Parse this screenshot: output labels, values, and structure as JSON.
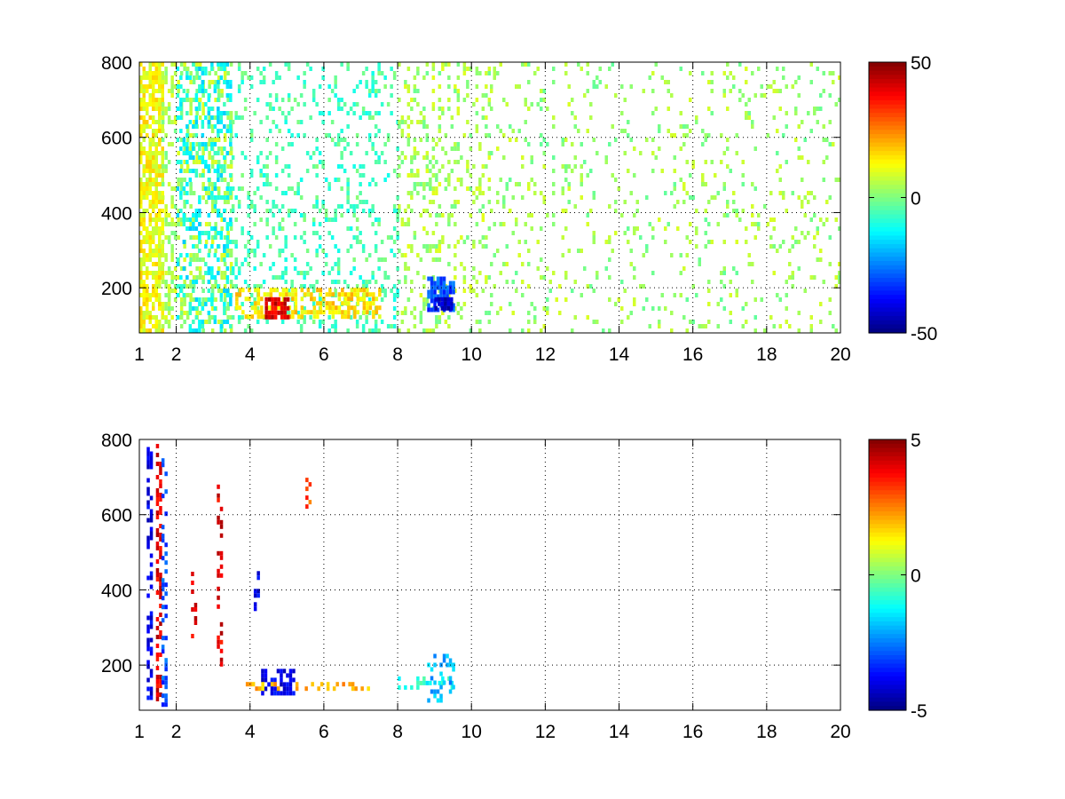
{
  "figure": {
    "background": "#ffffff"
  },
  "chart_data": [
    {
      "type": "heatmap",
      "panel": "top",
      "colormap": "jet",
      "x_range": [
        1,
        20
      ],
      "y_range": [
        80,
        800
      ],
      "x_ticks": [
        1,
        2,
        4,
        6,
        8,
        10,
        12,
        14,
        16,
        18,
        20
      ],
      "y_ticks": [
        200,
        400,
        600,
        800
      ],
      "grid": true,
      "colorbar": {
        "range": [
          -50,
          50
        ],
        "ticks": [
          50,
          0,
          -50
        ]
      },
      "features": [
        {
          "x": [
            1.0,
            1.6
          ],
          "y": [
            80,
            800
          ],
          "value": 12,
          "density": 0.7
        },
        {
          "x": [
            1.6,
            3.5
          ],
          "y": [
            80,
            800
          ],
          "value": 4,
          "density": 0.35
        },
        {
          "x": [
            2.0,
            3.5
          ],
          "y": [
            80,
            800
          ],
          "value": -12,
          "density": 0.3
        },
        {
          "x": [
            3.5,
            8.0
          ],
          "y": [
            80,
            800
          ],
          "value": -5,
          "density": 0.2
        },
        {
          "x": [
            3.6,
            7.5
          ],
          "y": [
            120,
            200
          ],
          "value": 15,
          "density": 0.55
        },
        {
          "x": [
            4.4,
            5.0
          ],
          "y": [
            125,
            175
          ],
          "value": 40,
          "density": 0.8
        },
        {
          "x": [
            8.0,
            10.5
          ],
          "y": [
            80,
            800
          ],
          "value": 4,
          "density": 0.22
        },
        {
          "x": [
            8.8,
            9.5
          ],
          "y": [
            140,
            230
          ],
          "value": -30,
          "density": 0.75
        },
        {
          "x": [
            9.0,
            9.5
          ],
          "y": [
            150,
            175
          ],
          "value": -45,
          "density": 0.9
        },
        {
          "x": [
            10.5,
            20.0
          ],
          "y": [
            80,
            800
          ],
          "value": 3,
          "density": 0.1
        }
      ]
    },
    {
      "type": "heatmap",
      "panel": "bottom",
      "colormap": "jet",
      "x_range": [
        1,
        20
      ],
      "y_range": [
        80,
        800
      ],
      "x_ticks": [
        1,
        2,
        4,
        6,
        8,
        10,
        12,
        14,
        16,
        18,
        20
      ],
      "y_ticks": [
        200,
        400,
        600,
        800
      ],
      "grid": true,
      "colorbar": {
        "range": [
          -5,
          5
        ],
        "ticks": [
          5,
          0,
          -5
        ]
      },
      "features": [
        {
          "x": [
            1.2,
            1.3
          ],
          "y": [
            100,
            780
          ],
          "value": -4,
          "density": 0.5
        },
        {
          "x": [
            1.45,
            1.55
          ],
          "y": [
            100,
            800
          ],
          "value": 4,
          "density": 0.5
        },
        {
          "x": [
            1.6,
            1.7
          ],
          "y": [
            100,
            750
          ],
          "value": -3,
          "density": 0.4
        },
        {
          "x": [
            4.3,
            5.2
          ],
          "y": [
            120,
            190
          ],
          "value": -4,
          "density": 0.6
        },
        {
          "x": [
            3.8,
            7.2
          ],
          "y": [
            135,
            155
          ],
          "value": 2,
          "density": 0.35
        },
        {
          "x": [
            5.5,
            5.65
          ],
          "y": [
            620,
            710
          ],
          "value": 3,
          "density": 0.6
        },
        {
          "x": [
            8.0,
            9.5
          ],
          "y": [
            140,
            170
          ],
          "value": -1,
          "density": 0.5
        },
        {
          "x": [
            8.8,
            9.5
          ],
          "y": [
            110,
            230
          ],
          "value": -2,
          "density": 0.4
        },
        {
          "x": [
            4.1,
            4.2
          ],
          "y": [
            350,
            450
          ],
          "value": -4,
          "density": 0.3
        },
        {
          "x": [
            2.4,
            2.5
          ],
          "y": [
            280,
            460
          ],
          "value": 4,
          "density": 0.3
        },
        {
          "x": [
            3.1,
            3.2
          ],
          "y": [
            200,
            680
          ],
          "value": 4,
          "density": 0.3
        }
      ]
    }
  ]
}
